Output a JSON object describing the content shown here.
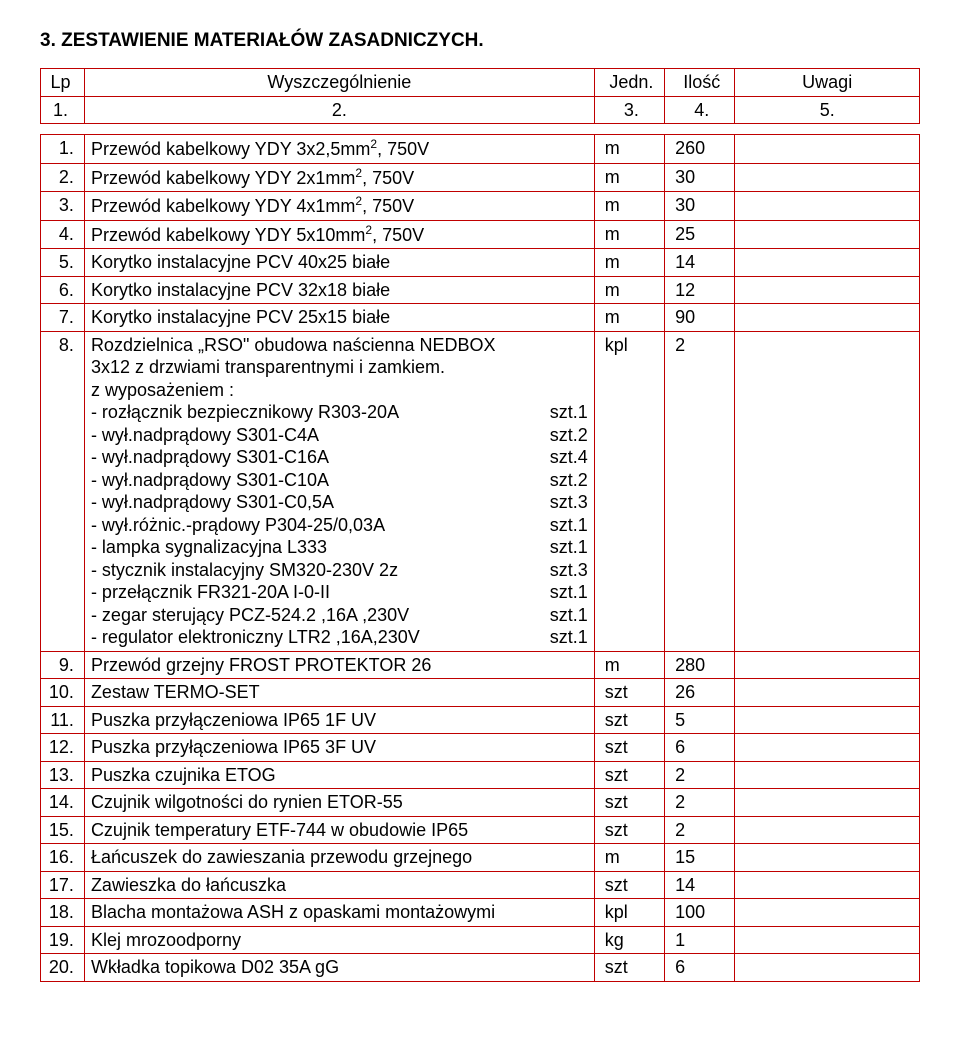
{
  "heading": "3.  ZESTAWIENIE MATERIAŁÓW ZASADNICZYCH.",
  "headers": {
    "lp": "Lp",
    "spec": "Wyszczególnienie",
    "unit": "Jedn.",
    "qty": "Ilość",
    "notes": "Uwagi"
  },
  "numRow": {
    "c1": "1.",
    "c2": "2.",
    "c3": "3.",
    "c4": "4.",
    "c5": "5."
  },
  "rows": [
    {
      "lp": "1.",
      "spec": "Przewód kabelkowy YDY 3x2,5mm², 750V",
      "unit": "m",
      "qty": "260"
    },
    {
      "lp": "2.",
      "spec": "Przewód kabelkowy YDY 2x1mm², 750V",
      "unit": "m",
      "qty": "30"
    },
    {
      "lp": "3.",
      "spec": "Przewód kabelkowy YDY 4x1mm², 750V",
      "unit": "m",
      "qty": "30"
    },
    {
      "lp": "4.",
      "spec": "Przewód kabelkowy YDY 5x10mm², 750V",
      "unit": "m",
      "qty": "25"
    },
    {
      "lp": "5.",
      "spec": "Korytko instalacyjne PCV  40x25  białe",
      "unit": "m",
      "qty": "14"
    },
    {
      "lp": "6.",
      "spec": "Korytko instalacyjne PCV  32x18  białe",
      "unit": "m",
      "qty": "12"
    },
    {
      "lp": "7.",
      "spec": "Korytko instalacyjne PCV  25x15  białe",
      "unit": "m",
      "qty": "90"
    },
    {
      "lp": "8.",
      "unit": "kpl",
      "qty": "2",
      "lines": [
        {
          "l": "Rozdzielnica „RSO\" obudowa naścienna  NEDBOX",
          "r": ""
        },
        {
          "l": "3x12  z drzwiami transparentnymi i zamkiem.",
          "r": ""
        },
        {
          "l": "z wyposażeniem :",
          "r": ""
        },
        {
          "l": "- rozłącznik bezpiecznikowy R303-20A",
          "r": "szt.1"
        },
        {
          "l": " - wył.nadprądowy S301-C4A",
          "r": "szt.2"
        },
        {
          "l": "- wył.nadprądowy S301-C16A",
          "r": "szt.4"
        },
        {
          "l": "- wył.nadprądowy S301-C10A",
          "r": "szt.2"
        },
        {
          "l": "- wył.nadprądowy S301-C0,5A",
          "r": "szt.3"
        },
        {
          "l": " - wył.różnic.-prądowy P304-25/0,03A",
          "r": "szt.1"
        },
        {
          "l": "- lampka sygnalizacyjna L333",
          "r": "szt.1"
        },
        {
          "l": "- stycznik instalacyjny SM320-230V 2z",
          "r": "szt.3"
        },
        {
          "l": "- przełącznik FR321-20A  I-0-II",
          "r": "szt.1"
        },
        {
          "l": " - zegar sterujący PCZ-524.2 ,16A ,230V",
          "r": "szt.1"
        },
        {
          "l": " - regulator elektroniczny LTR2 ,16A,230V",
          "r": "szt.1"
        }
      ]
    },
    {
      "lp": "9.",
      "spec": "Przewód grzejny FROST PROTEKTOR 26",
      "unit": "m",
      "qty": "280"
    },
    {
      "lp": "10.",
      "spec": "Zestaw TERMO-SET",
      "unit": "szt",
      "qty": "26"
    },
    {
      "lp": "11.",
      "spec": "Puszka przyłączeniowa IP65 1F UV",
      "unit": "szt",
      "qty": "5"
    },
    {
      "lp": "12.",
      "spec": "Puszka przyłączeniowa IP65 3F UV",
      "unit": "szt",
      "qty": "6"
    },
    {
      "lp": "13.",
      "spec": "Puszka czujnika ETOG",
      "unit": "szt",
      "qty": "2"
    },
    {
      "lp": "14.",
      "spec": "Czujnik wilgotności do rynien ETOR-55",
      "unit": "szt",
      "qty": "2"
    },
    {
      "lp": "15.",
      "spec": "Czujnik temperatury ETF-744 w obudowie IP65",
      "unit": "szt",
      "qty": "2"
    },
    {
      "lp": "16.",
      "spec": "Łańcuszek do zawieszania przewodu grzejnego",
      "unit": "m",
      "qty": "15"
    },
    {
      "lp": "17.",
      "spec": "Zawieszka do łańcuszka",
      "unit": "szt",
      "qty": "14"
    },
    {
      "lp": "18.",
      "spec": "Blacha montażowa ASH z opaskami montażowymi",
      "unit": "kpl",
      "qty": "100"
    },
    {
      "lp": "19.",
      "spec": "Klej mrozoodporny",
      "unit": "kg",
      "qty": "1"
    },
    {
      "lp": "20.",
      "spec": "Wkładka topikowa D02 35A gG",
      "unit": "szt",
      "qty": "6"
    }
  ]
}
